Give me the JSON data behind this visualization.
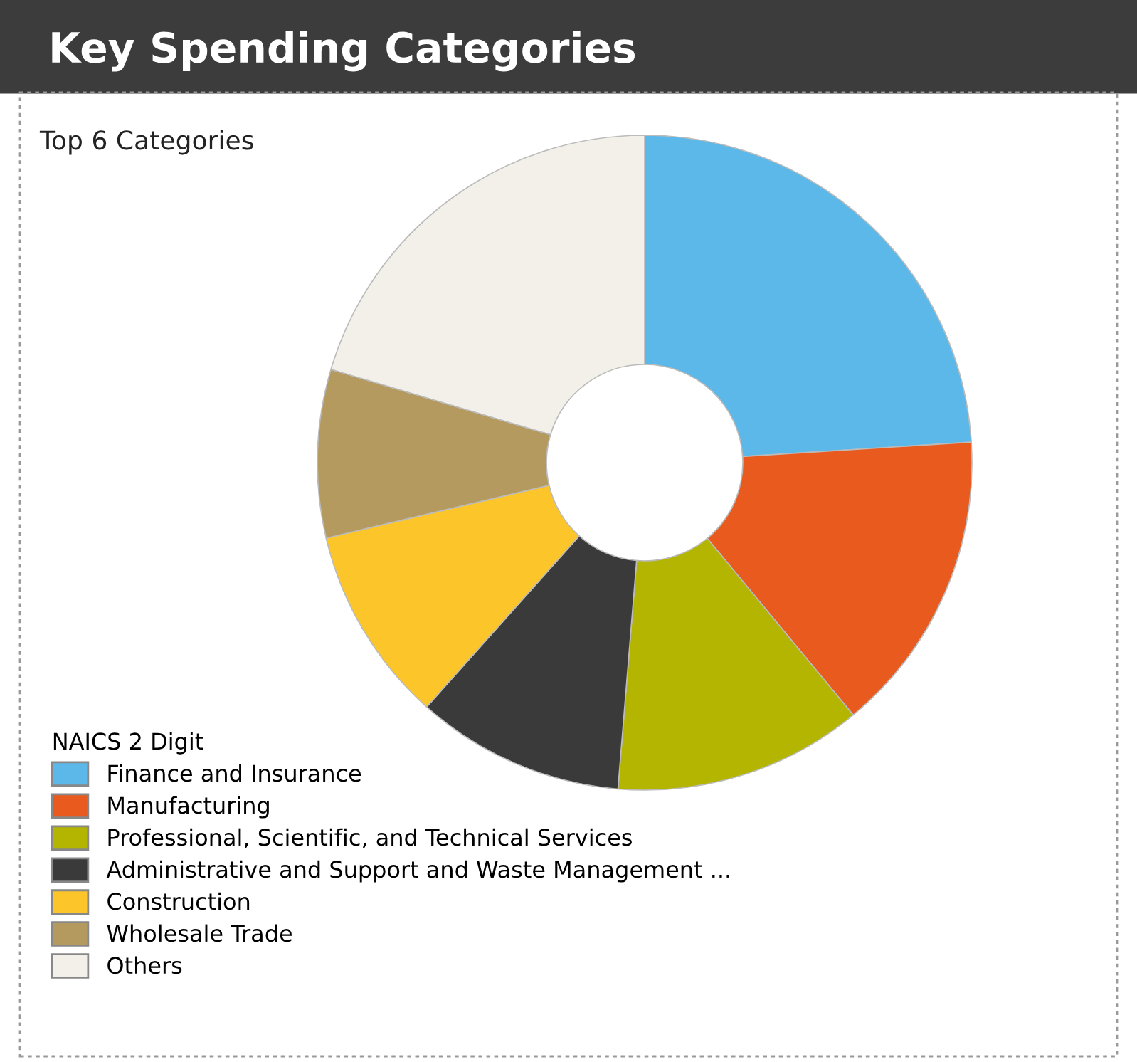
{
  "chart_data": {
    "type": "donut",
    "title": "Key Spending Categories",
    "subtitle": "Top 6 Categories",
    "legend_title": "NAICS 2 Digit",
    "legend": "bottom left",
    "categories": [
      "Finance and Insurance",
      "Manufacturing",
      "Professional, Scientific, and Technical Services",
      "Administrative and Support and Waste Management ...",
      "Construction",
      "Wholesale Trade",
      "Others"
    ],
    "values": [
      24,
      15,
      12.3,
      10.3,
      9.7,
      8.3,
      20.4
    ],
    "colors": [
      "#5bb8e8",
      "#e85a1e",
      "#b3b500",
      "#3a3a3a",
      "#fcc52a",
      "#b59a60",
      "#f2f0e8"
    ]
  }
}
